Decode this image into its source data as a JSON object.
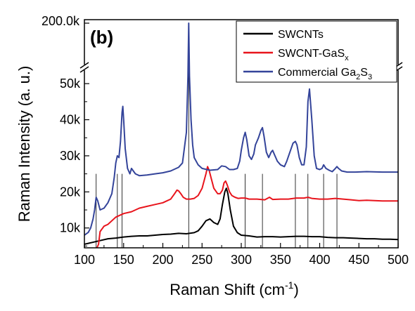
{
  "chart_data": {
    "type": "line",
    "panel_label": "(b)",
    "xlabel": "Raman Shift (cm",
    "xlabel_sup": "-1",
    "xlabel_close": ")",
    "ylabel": "Raman Intensity (a. u.)",
    "xlim": [
      100,
      500
    ],
    "ylim_lower": [
      4500,
      54500
    ],
    "ylim_upper_label": "200.0k",
    "x_ticks": [
      100,
      150,
      200,
      250,
      300,
      350,
      400,
      450,
      500
    ],
    "x_tick_labels": [
      "100",
      "150",
      "200",
      "250",
      "300",
      "350",
      "400",
      "450",
      "500"
    ],
    "y_ticks": [
      10000,
      20000,
      30000,
      40000,
      50000
    ],
    "y_tick_labels": [
      "10k",
      "20k",
      "30k",
      "40k",
      "50k"
    ],
    "legend_position": "top-right",
    "legend": [
      {
        "base": "SWCNTs",
        "sub": "",
        "tail": "",
        "tail_sub": "",
        "color": "#000000"
      },
      {
        "base": "SWCNT-GaS",
        "sub": "x",
        "tail": "",
        "tail_sub": "",
        "color": "#e8141c"
      },
      {
        "base": "Commercial Ga",
        "sub": "2",
        "tail": "S",
        "tail_sub": "3",
        "color": "#34449a"
      }
    ],
    "reference_lines_x": [
      115,
      142,
      148,
      233,
      305,
      327,
      369,
      385,
      405,
      422
    ],
    "series": [
      {
        "name": "SWCNTs",
        "color": "#000000",
        "x": [
          100,
          110,
          120,
          130,
          140,
          150,
          160,
          170,
          180,
          190,
          200,
          210,
          220,
          230,
          240,
          245,
          250,
          255,
          260,
          265,
          270,
          273,
          276,
          279,
          281,
          283,
          286,
          290,
          295,
          300,
          310,
          320,
          330,
          340,
          350,
          360,
          370,
          380,
          390,
          400,
          410,
          420,
          430,
          440,
          450,
          460,
          470,
          480,
          490,
          500
        ],
        "y": [
          5500,
          6000,
          6500,
          7000,
          7200,
          7500,
          7700,
          7800,
          7800,
          8000,
          8200,
          8300,
          8500,
          8400,
          8700,
          9200,
          10500,
          12000,
          12500,
          11500,
          11000,
          12500,
          16500,
          20000,
          21000,
          19500,
          15000,
          10500,
          8700,
          8000,
          7800,
          7500,
          7600,
          7600,
          7500,
          7600,
          7700,
          7700,
          7600,
          7600,
          7400,
          7300,
          7300,
          7200,
          7100,
          7000,
          7000,
          6900,
          6900,
          6800
        ]
      },
      {
        "name": "SWCNT-GaSx",
        "color": "#e8141c",
        "x": [
          100,
          110,
          115,
          118,
          120,
          125,
          130,
          140,
          150,
          160,
          170,
          180,
          190,
          200,
          205,
          210,
          215,
          218,
          220,
          223,
          226,
          230,
          235,
          240,
          245,
          250,
          255,
          257,
          259,
          262,
          265,
          270,
          273,
          276,
          278,
          280,
          282,
          285,
          288,
          292,
          296,
          300,
          305,
          310,
          320,
          330,
          336,
          340,
          350,
          360,
          370,
          380,
          385,
          390,
          400,
          410,
          420,
          430,
          440,
          450,
          460,
          470,
          480,
          490,
          500
        ],
        "y": [
          3500,
          3700,
          4000,
          5500,
          9000,
          10500,
          11000,
          13000,
          14000,
          14500,
          15500,
          16000,
          16500,
          17000,
          17500,
          18000,
          19500,
          20500,
          20300,
          19500,
          18500,
          18000,
          18000,
          18200,
          19000,
          21000,
          25000,
          27000,
          26000,
          23500,
          21000,
          19500,
          19500,
          20500,
          22500,
          23000,
          22000,
          20000,
          19000,
          18500,
          18200,
          18300,
          18300,
          18000,
          18000,
          17800,
          18500,
          17900,
          18000,
          18000,
          18300,
          18300,
          18500,
          18200,
          18000,
          18000,
          18200,
          18000,
          17800,
          17600,
          17700,
          17600,
          17500,
          17500,
          17500
        ]
      },
      {
        "name": "Commercial Ga2S3",
        "color": "#34449a",
        "x": [
          100,
          105,
          108,
          111,
          113,
          115,
          117,
          120,
          125,
          130,
          135,
          138,
          140,
          142,
          144,
          146,
          148,
          149,
          150,
          152,
          155,
          158,
          160,
          165,
          170,
          180,
          190,
          200,
          210,
          220,
          225,
          230,
          232,
          233,
          234,
          236,
          238,
          240,
          245,
          250,
          260,
          270,
          275,
          280,
          285,
          290,
          295,
          298,
          300,
          303,
          305,
          307,
          310,
          313,
          316,
          318,
          320,
          322,
          325,
          327,
          329,
          332,
          335,
          338,
          340,
          343,
          346,
          350,
          355,
          358,
          362,
          366,
          369,
          371,
          374,
          377,
          380,
          383,
          385,
          387,
          390,
          393,
          396,
          400,
          403,
          405,
          408,
          412,
          416,
          420,
          422,
          424,
          428,
          435,
          445,
          460,
          480,
          500
        ],
        "y": [
          8000,
          8800,
          10000,
          12500,
          15000,
          18500,
          17500,
          15000,
          15500,
          17000,
          19500,
          24000,
          28000,
          30000,
          29500,
          34000,
          42000,
          43700,
          40000,
          32000,
          26500,
          25000,
          26500,
          25000,
          24500,
          24700,
          25000,
          25300,
          25800,
          26800,
          28000,
          36500,
          52000,
          200000,
          52000,
          40000,
          33000,
          29500,
          27500,
          26500,
          26000,
          26200,
          27200,
          27000,
          26200,
          26200,
          26500,
          28500,
          31500,
          35000,
          36500,
          34500,
          30000,
          29000,
          30500,
          33000,
          34000,
          35000,
          37000,
          37800,
          35500,
          31000,
          29500,
          31000,
          31500,
          30000,
          28500,
          27500,
          27000,
          28500,
          31000,
          33500,
          34000,
          33000,
          29500,
          27500,
          27500,
          32500,
          45000,
          48500,
          40000,
          30000,
          26500,
          26200,
          26500,
          27500,
          26500,
          26000,
          25600,
          26500,
          27000,
          26500,
          25800,
          25500,
          25500,
          25600,
          25500,
          25500
        ]
      }
    ]
  }
}
